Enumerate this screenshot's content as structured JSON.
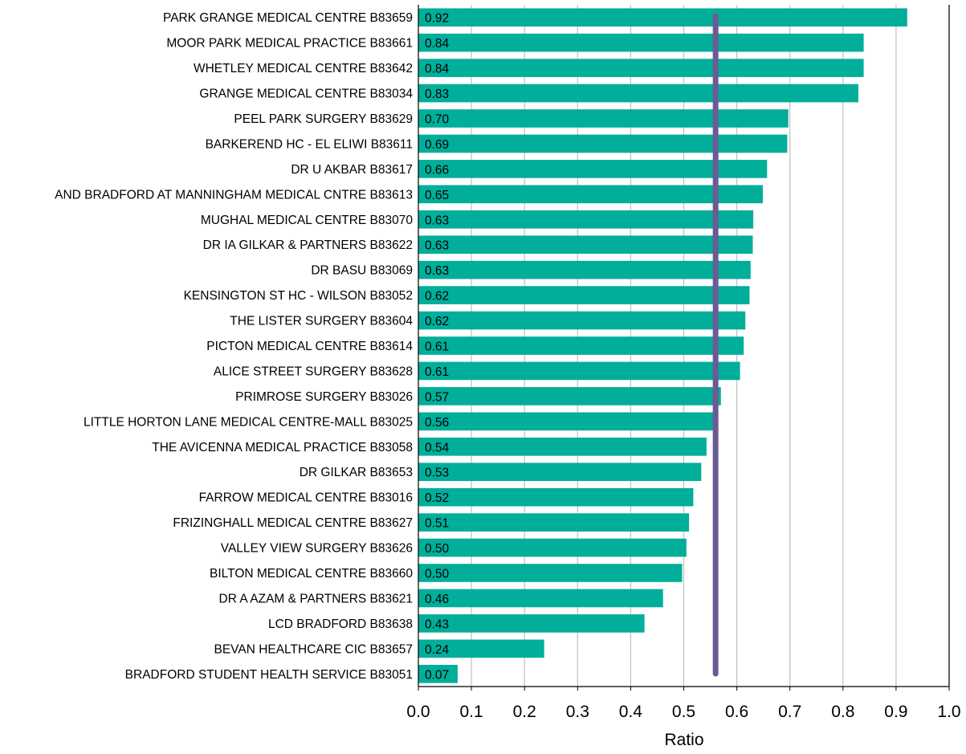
{
  "chart_data": {
    "type": "bar",
    "orientation": "horizontal",
    "title": "",
    "xlabel": "Ratio",
    "ylabel": "",
    "xlim": [
      0.0,
      1.0
    ],
    "x_ticks": [
      "0.0",
      "0.1",
      "0.2",
      "0.3",
      "0.4",
      "0.5",
      "0.6",
      "0.7",
      "0.8",
      "0.9",
      "1.0"
    ],
    "grid": "vertical",
    "legend": "none",
    "bar_color": "#00ae9a",
    "reference_line": {
      "value": 0.56,
      "color": "#6b5b95"
    },
    "categories": [
      "PARK GRANGE MEDICAL CENTRE B83659",
      "MOOR PARK MEDICAL PRACTICE B83661",
      "WHETLEY MEDICAL CENTRE B83642",
      "GRANGE MEDICAL CENTRE B83034",
      "PEEL PARK SURGERY B83629",
      "BARKEREND HC - EL ELIWI B83611",
      "DR U AKBAR B83617",
      "AND BRADFORD AT MANNINGHAM MEDICAL CNTRE B83613",
      "MUGHAL MEDICAL CENTRE B83070",
      "DR IA GILKAR & PARTNERS B83622",
      "DR BASU B83069",
      "KENSINGTON ST HC - WILSON B83052",
      "THE LISTER SURGERY B83604",
      "PICTON MEDICAL CENTRE B83614",
      "ALICE STREET SURGERY B83628",
      "PRIMROSE SURGERY B83026",
      "LITTLE HORTON LANE MEDICAL CENTRE-MALL B83025",
      "THE AVICENNA MEDICAL PRACTICE B83058",
      "DR GILKAR B83653",
      "FARROW MEDICAL CENTRE B83016",
      "FRIZINGHALL MEDICAL CENTRE B83627",
      "VALLEY VIEW SURGERY B83626",
      "BILTON MEDICAL CENTRE B83660",
      "DR A AZAM & PARTNERS B83621",
      "LCD BRADFORD B83638",
      "BEVAN HEALTHCARE CIC B83657",
      "BRADFORD STUDENT HEALTH SERVICE B83051"
    ],
    "values": [
      0.921,
      0.839,
      0.839,
      0.829,
      0.697,
      0.695,
      0.657,
      0.649,
      0.631,
      0.63,
      0.626,
      0.624,
      0.616,
      0.613,
      0.606,
      0.57,
      0.561,
      0.543,
      0.533,
      0.518,
      0.51,
      0.505,
      0.497,
      0.461,
      0.426,
      0.237,
      0.074
    ],
    "data_labels": [
      "0.92",
      "0.84",
      "0.84",
      "0.83",
      "0.70",
      "0.69",
      "0.66",
      "0.65",
      "0.63",
      "0.63",
      "0.63",
      "0.62",
      "0.62",
      "0.61",
      "0.61",
      "0.57",
      "0.56",
      "0.54",
      "0.53",
      "0.52",
      "0.51",
      "0.50",
      "0.50",
      "0.46",
      "0.43",
      "0.24",
      "0.07"
    ]
  }
}
